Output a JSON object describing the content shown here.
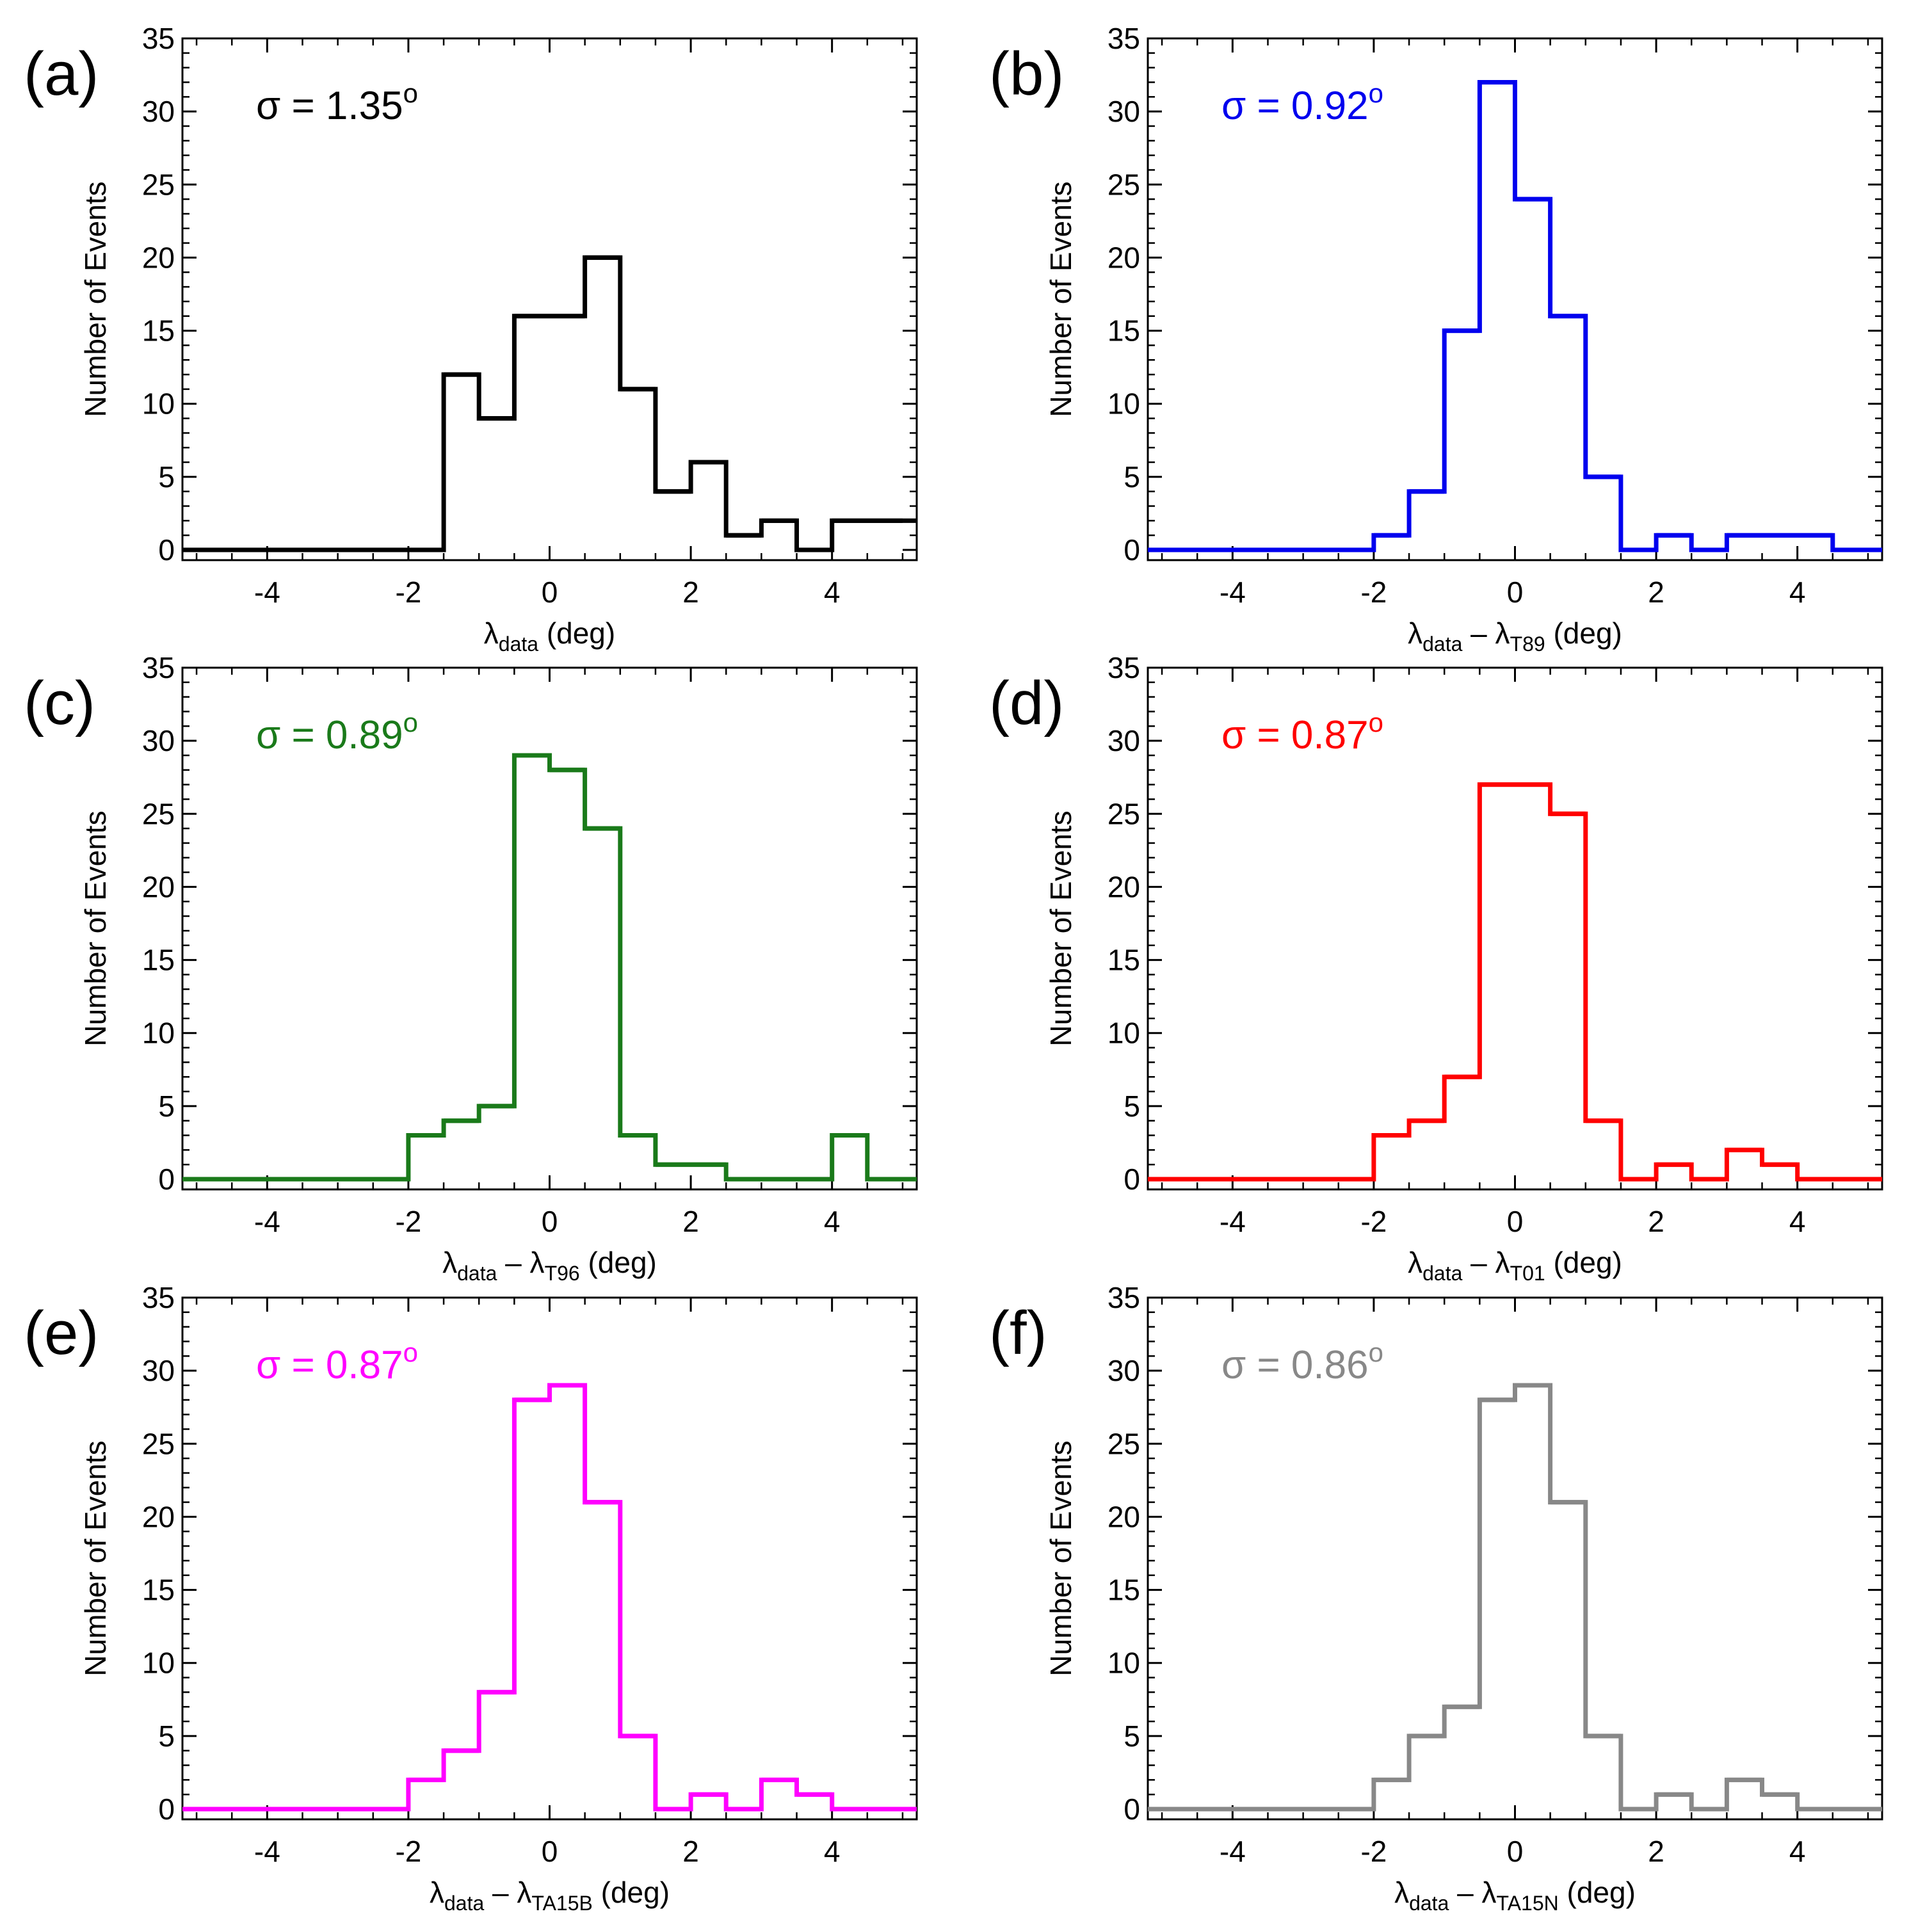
{
  "chart_data": [
    {
      "type": "bar",
      "id": "a",
      "panel_label": "(a)",
      "sigma_label": "σ = 1.35",
      "sigma_sup": "o",
      "color": "#000000",
      "xlabel_main": "λ",
      "xlabel_sub": "data",
      "xlabel_rest": " (deg)",
      "ylabel": "Number of Events",
      "xlim": [
        -5.2,
        5.2
      ],
      "ylim": [
        -0.7,
        35
      ],
      "xticks": [
        -4,
        -2,
        0,
        2,
        4
      ],
      "yticks": [
        0,
        5,
        10,
        15,
        20,
        25,
        30,
        35
      ],
      "bin_width": 0.5,
      "bin_start": -5,
      "counts": [
        0,
        0,
        0,
        0,
        0,
        0,
        0,
        12,
        9,
        16,
        16,
        20,
        11,
        4,
        6,
        1,
        2,
        0,
        2,
        2
      ]
    },
    {
      "type": "bar",
      "id": "b",
      "panel_label": "(b)",
      "sigma_label": "σ = 0.92",
      "sigma_sup": "o",
      "color": "#0000ee",
      "xlabel_main": "λ",
      "xlabel_sub": "data",
      "xlabel_mid": " – λ",
      "xlabel_sub2": "T89",
      "xlabel_rest": " (deg)",
      "ylabel": "Number of Events",
      "xlim": [
        -5.2,
        5.2
      ],
      "ylim": [
        -0.7,
        35
      ],
      "xticks": [
        -4,
        -2,
        0,
        2,
        4
      ],
      "yticks": [
        0,
        5,
        10,
        15,
        20,
        25,
        30,
        35
      ],
      "bin_width": 0.5,
      "bin_start": -5,
      "counts": [
        0,
        0,
        0,
        0,
        0,
        0,
        1,
        4,
        15,
        32,
        24,
        16,
        5,
        0,
        1,
        0,
        1,
        1,
        1,
        0
      ]
    },
    {
      "type": "bar",
      "id": "c",
      "panel_label": "(c)",
      "sigma_label": "σ = 0.89",
      "sigma_sup": "o",
      "color": "#1a7a1a",
      "xlabel_main": "λ",
      "xlabel_sub": "data",
      "xlabel_mid": " – λ",
      "xlabel_sub2": "T96",
      "xlabel_rest": " (deg)",
      "ylabel": "Number of Events",
      "xlim": [
        -5.2,
        5.2
      ],
      "ylim": [
        -0.7,
        35
      ],
      "xticks": [
        -4,
        -2,
        0,
        2,
        4
      ],
      "yticks": [
        0,
        5,
        10,
        15,
        20,
        25,
        30,
        35
      ],
      "bin_width": 0.5,
      "bin_start": -5,
      "counts": [
        0,
        0,
        0,
        0,
        0,
        0,
        3,
        4,
        5,
        29,
        28,
        24,
        3,
        1,
        1,
        0,
        0,
        0,
        3,
        0
      ]
    },
    {
      "type": "bar",
      "id": "d",
      "panel_label": "(d)",
      "sigma_label": "σ = 0.87",
      "sigma_sup": "o",
      "color": "#ff0000",
      "xlabel_main": "λ",
      "xlabel_sub": "data",
      "xlabel_mid": " – λ",
      "xlabel_sub2": "T01",
      "xlabel_rest": " (deg)",
      "ylabel": "Number of Events",
      "xlim": [
        -5.2,
        5.2
      ],
      "ylim": [
        -0.7,
        35
      ],
      "xticks": [
        -4,
        -2,
        0,
        2,
        4
      ],
      "yticks": [
        0,
        5,
        10,
        15,
        20,
        25,
        30,
        35
      ],
      "bin_width": 0.5,
      "bin_start": -5,
      "counts": [
        0,
        0,
        0,
        0,
        0,
        0,
        3,
        4,
        7,
        27,
        27,
        25,
        4,
        0,
        1,
        0,
        2,
        1,
        0,
        0
      ]
    },
    {
      "type": "bar",
      "id": "e",
      "panel_label": "(e)",
      "sigma_label": "σ = 0.87",
      "sigma_sup": "o",
      "color": "#ff00ff",
      "xlabel_main": "λ",
      "xlabel_sub": "data",
      "xlabel_mid": " – λ",
      "xlabel_sub2": "TA15B",
      "xlabel_rest": " (deg)",
      "ylabel": "Number of Events",
      "xlim": [
        -5.2,
        5.2
      ],
      "ylim": [
        -0.7,
        35
      ],
      "xticks": [
        -4,
        -2,
        0,
        2,
        4
      ],
      "yticks": [
        0,
        5,
        10,
        15,
        20,
        25,
        30,
        35
      ],
      "bin_width": 0.5,
      "bin_start": -5,
      "counts": [
        0,
        0,
        0,
        0,
        0,
        0,
        2,
        4,
        8,
        28,
        29,
        21,
        5,
        0,
        1,
        0,
        2,
        1,
        0,
        0
      ]
    },
    {
      "type": "bar",
      "id": "f",
      "panel_label": "(f)",
      "sigma_label": "σ = 0.86",
      "sigma_sup": "o",
      "color": "#888888",
      "xlabel_main": "λ",
      "xlabel_sub": "data",
      "xlabel_mid": " – λ",
      "xlabel_sub2": "TA15N",
      "xlabel_rest": " (deg)",
      "ylabel": "Number of Events",
      "xlim": [
        -5.2,
        5.2
      ],
      "ylim": [
        -0.7,
        35
      ],
      "xticks": [
        -4,
        -2,
        0,
        2,
        4
      ],
      "yticks": [
        0,
        5,
        10,
        15,
        20,
        25,
        30,
        35
      ],
      "bin_width": 0.5,
      "bin_start": -5,
      "counts": [
        0,
        0,
        0,
        0,
        0,
        0,
        2,
        5,
        7,
        28,
        29,
        21,
        5,
        0,
        1,
        0,
        2,
        1,
        0,
        0
      ]
    }
  ]
}
